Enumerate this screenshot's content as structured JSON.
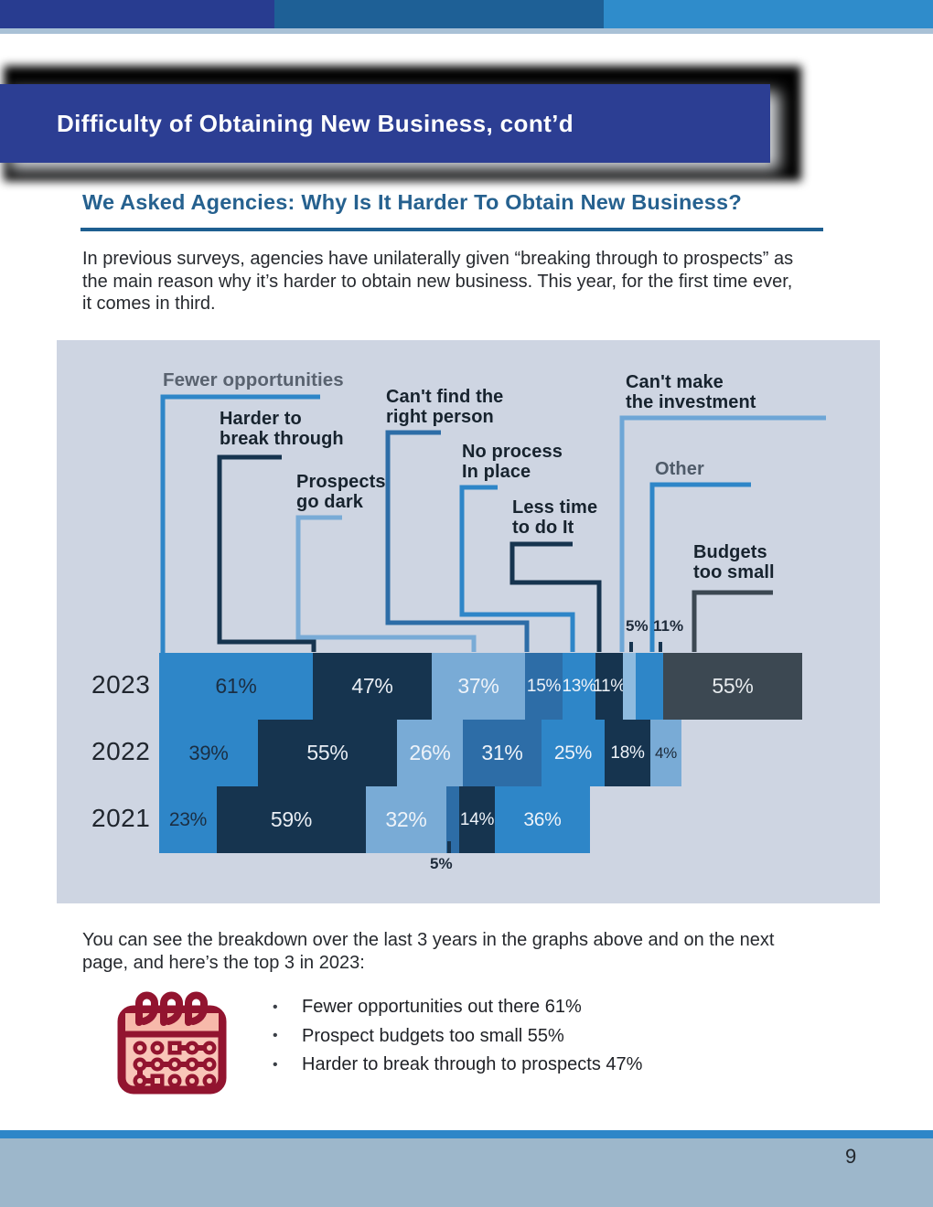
{
  "page": {
    "title": "Difficulty of Obtaining New Business, cont’d",
    "subtitle": "We Asked Agencies: Why Is It Harder To Obtain New Business?",
    "page_number": "9"
  },
  "intro": {
    "lines": [
      "In previous surveys, agencies have unilaterally given “breaking through to prospects” as",
      "the main reason why it’s harder to obtain new business.  This year, for the first time ever,",
      "it comes in third."
    ]
  },
  "chart_data": {
    "type": "bar",
    "orientation": "horizontal_stacked",
    "unit": "%",
    "background": "#ced5e2",
    "years": [
      "2023",
      "2022",
      "2021"
    ],
    "categories": [
      "Fewer opportunities",
      "Harder to break through",
      "Prospects go dark",
      "Can't find the right person",
      "No process in place",
      "Less time to do it",
      "Can't make the investment",
      "Other",
      "Budgets too small"
    ],
    "rows": [
      {
        "year": "2023",
        "segments": [
          {
            "category": "Fewer opportunities",
            "value": 61,
            "label": "61%",
            "color": "#2e86c8",
            "text": "#1b2e42",
            "fs": 23
          },
          {
            "category": "Harder to break through",
            "value": 47,
            "label": "47%",
            "color": "#16344f",
            "text": "#e9eef4",
            "fs": 23
          },
          {
            "category": "Prospects go dark",
            "value": 37,
            "label": "37%",
            "color": "#79abd6",
            "text": "#eef3f9",
            "fs": 23
          },
          {
            "category": "Can't find the right person",
            "value": 15,
            "label": "15%",
            "color": "#2d6da7",
            "text": "#eef3f9",
            "fs": 19
          },
          {
            "category": "No process in place",
            "value": 13,
            "label": "13%",
            "color": "#2e86c8",
            "text": "#eef3f9",
            "fs": 19
          },
          {
            "category": "Less time to do it",
            "value": 11,
            "label": "11%",
            "color": "#16344f",
            "text": "#eef3f9",
            "fs": 19
          },
          {
            "category": "Can't make the investment",
            "value": 5,
            "label": "5%",
            "color": "#8fbbdf",
            "text": "",
            "fs": 0,
            "label_outside": true
          },
          {
            "category": "Other",
            "value": 11,
            "label": "11%",
            "color": "#2e86c8",
            "text": "",
            "fs": 0,
            "label_outside": true
          },
          {
            "category": "Budgets too small",
            "value": 55,
            "label": "55%",
            "color": "#3c4852",
            "text": "#e6eaed",
            "fs": 23
          }
        ]
      },
      {
        "year": "2022",
        "segments": [
          {
            "value": 39,
            "label": "39%",
            "color": "#2e86c8",
            "text": "#1b2e42",
            "fs": 22
          },
          {
            "value": 55,
            "label": "55%",
            "color": "#16344f",
            "text": "#e9eef4",
            "fs": 23
          },
          {
            "value": 26,
            "label": "26%",
            "color": "#79abd6",
            "text": "#eef3f9",
            "fs": 23
          },
          {
            "value": 31,
            "label": "31%",
            "color": "#2d6da7",
            "text": "#eef3f9",
            "fs": 23
          },
          {
            "value": 25,
            "label": "25%",
            "color": "#2e86c8",
            "text": "#eef3f9",
            "fs": 21
          },
          {
            "value": 18,
            "label": "18%",
            "color": "#16344f",
            "text": "#eef3f9",
            "fs": 19,
            "min_w": 50
          },
          {
            "value": 4,
            "label": "4%",
            "color": "#79abd6",
            "text": "#1d2a3a",
            "fs": 17,
            "min_w": 34
          }
        ]
      },
      {
        "year": "2021",
        "segments": [
          {
            "value": 23,
            "label": "23%",
            "color": "#2e86c8",
            "text": "#1b2e42",
            "fs": 21
          },
          {
            "value": 59,
            "label": "59%",
            "color": "#16344f",
            "text": "#e9eef4",
            "fs": 23
          },
          {
            "value": 32,
            "label": "32%",
            "color": "#79abd6",
            "text": "#eef3f9",
            "fs": 23
          },
          {
            "value": 5,
            "label": "5%",
            "color": "#2d6da7",
            "text": "",
            "fs": 0,
            "label_outside": true
          },
          {
            "value": 14,
            "label": "14%",
            "color": "#16344f",
            "text": "#eef3f9",
            "fs": 19
          },
          {
            "value": 36,
            "label": "36%",
            "color": "#2e86c8",
            "text": "#eef3f9",
            "fs": 21,
            "min_w": 104
          }
        ]
      }
    ],
    "callouts": [
      {
        "id": "fewer",
        "text": "Fewer opportunities",
        "color": "#59626f",
        "line": "#2e86c8"
      },
      {
        "id": "harder",
        "text": "Harder to\nbreak through",
        "color": "#17232e",
        "line": "#16344f"
      },
      {
        "id": "prospects",
        "text": "Prospects\ngo dark",
        "color": "#17232e",
        "line": "#79abd6"
      },
      {
        "id": "cantfind",
        "text": "Can't find the\nright person",
        "color": "#17232e",
        "line": "#2d6da7"
      },
      {
        "id": "noprocess",
        "text": "No process\nIn place",
        "color": "#17232e",
        "line": "#2e86c8"
      },
      {
        "id": "lesstime",
        "text": "Less time\nto do It",
        "color": "#17232e",
        "line": "#16344f"
      },
      {
        "id": "cantmake",
        "text": "Can't make\nthe investment",
        "color": "#17232e",
        "line": "#6ea6d6"
      },
      {
        "id": "other",
        "text": "Other",
        "color": "#4f5b69",
        "line": "#2e86c8"
      },
      {
        "id": "budgets",
        "text": "Budgets\ntoo small",
        "color": "#17232e",
        "line": "#3c4852"
      }
    ],
    "ticks": [
      {
        "text": "5%"
      },
      {
        "text": "11%"
      },
      {
        "text": "5%"
      }
    ]
  },
  "below": {
    "lines": [
      "You can see the breakdown over the last 3 years in the graphs above and on the next",
      "page, and here’s the top 3 in 2023:"
    ]
  },
  "top3": {
    "items": [
      "Fewer opportunities out there 61%",
      "Prospect budgets too small 55%",
      "Harder to break through to prospects 47%"
    ]
  },
  "theme": {
    "topbar_colors": [
      "#283c90",
      "#1e6096",
      "#2f8ccb"
    ],
    "banner_color": "#2c3e93",
    "subtitle_color": "#26618f",
    "panel_background": "#ced5e2",
    "footer_strip": "#2e86c8",
    "footer_band": "#9db7cb",
    "calendar_icon_colors": [
      "#92142f",
      "#f9c5b8"
    ]
  }
}
